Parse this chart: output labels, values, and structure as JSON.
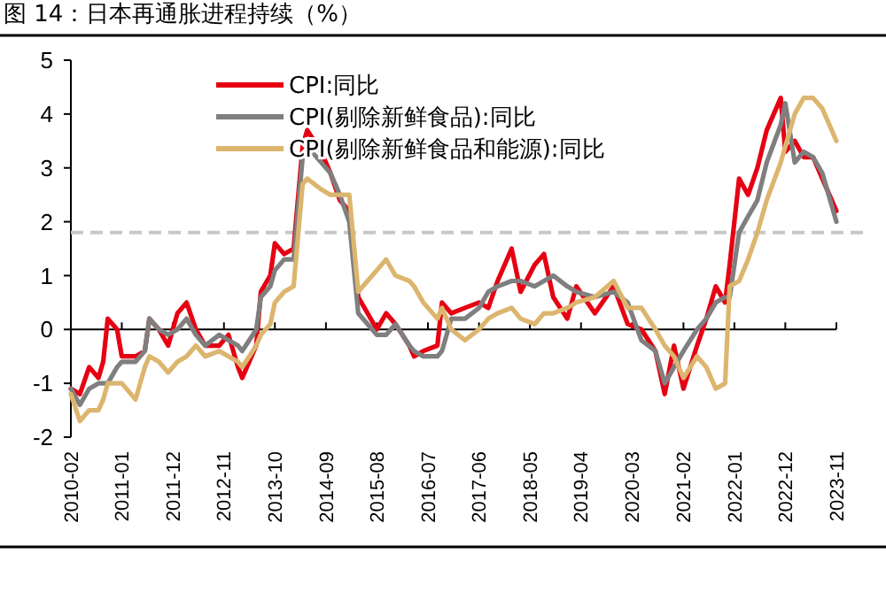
{
  "chart_data": {
    "type": "line",
    "title": "图 14：日本再通胀进程持续（%）",
    "x": [
      "2010-02",
      "2010-04",
      "2010-06",
      "2010-08",
      "2010-09",
      "2010-10",
      "2010-12",
      "2011-01",
      "2011-04",
      "2011-06",
      "2011-07",
      "2011-09",
      "2011-11",
      "2012-01",
      "2012-03",
      "2012-05",
      "2012-07",
      "2012-10",
      "2012-12",
      "2013-02",
      "2013-03",
      "2013-06",
      "2013-07",
      "2013-09",
      "2013-10",
      "2013-12",
      "2014-02",
      "2014-04",
      "2014-05",
      "2014-08",
      "2014-10",
      "2014-12",
      "2015-02",
      "2015-04",
      "2015-06",
      "2015-08",
      "2015-10",
      "2015-12",
      "2016-03",
      "2016-04",
      "2016-06",
      "2016-09",
      "2016-10",
      "2016-12",
      "2017-03",
      "2017-06",
      "2017-08",
      "2017-10",
      "2018-01",
      "2018-03",
      "2018-06",
      "2018-08",
      "2018-10",
      "2019-01",
      "2019-03",
      "2019-07",
      "2019-11",
      "2020-02",
      "2020-05",
      "2020-08",
      "2020-10",
      "2020-12",
      "2021-02",
      "2021-05",
      "2021-07",
      "2021-09",
      "2021-11",
      "2021-12",
      "2022-02",
      "2022-04",
      "2022-06",
      "2022-08",
      "2022-11",
      "2022-12",
      "2023-02",
      "2023-04",
      "2023-06",
      "2023-08",
      "2023-11"
    ],
    "series": [
      {
        "name": "CPI:同比",
        "color": "#e60012",
        "values": [
          -1.1,
          -1.2,
          -0.7,
          -0.9,
          -0.6,
          0.2,
          0.0,
          -0.5,
          -0.5,
          -0.4,
          0.2,
          0.0,
          -0.3,
          0.3,
          0.5,
          0.0,
          -0.3,
          -0.3,
          -0.1,
          -0.7,
          -0.9,
          -0.3,
          0.7,
          1.0,
          1.6,
          1.4,
          1.5,
          3.4,
          3.7,
          3.3,
          2.9,
          2.4,
          2.2,
          0.6,
          0.3,
          0.0,
          0.3,
          0.1,
          -0.3,
          -0.5,
          -0.4,
          -0.3,
          0.5,
          0.3,
          0.4,
          0.5,
          0.4,
          0.9,
          1.5,
          0.7,
          1.2,
          1.4,
          0.6,
          0.2,
          0.8,
          0.3,
          0.8,
          0.1,
          0.0,
          -0.4,
          -1.2,
          -0.3,
          -1.1,
          -0.3,
          0.2,
          0.8,
          0.5,
          1.2,
          2.8,
          2.5,
          3.0,
          3.7,
          4.3,
          3.3,
          3.5,
          3.2,
          3.2,
          2.8,
          2.2
        ]
      },
      {
        "name": "CPI(剔除新鲜食品):同比",
        "color": "#7f7f7f",
        "values": [
          -1.1,
          -1.4,
          -1.1,
          -1.0,
          -1.0,
          -1.0,
          -0.7,
          -0.6,
          -0.6,
          -0.4,
          0.2,
          0.0,
          -0.1,
          0.0,
          0.2,
          -0.1,
          -0.3,
          -0.1,
          -0.2,
          -0.3,
          -0.4,
          0.0,
          0.6,
          0.8,
          1.1,
          1.3,
          1.3,
          3.2,
          3.4,
          3.1,
          2.9,
          2.5,
          2.0,
          0.3,
          0.1,
          -0.1,
          -0.1,
          0.1,
          -0.3,
          -0.4,
          -0.5,
          -0.5,
          -0.4,
          0.2,
          0.2,
          0.4,
          0.7,
          0.8,
          0.9,
          0.9,
          0.8,
          0.9,
          1.0,
          0.8,
          0.7,
          0.6,
          0.7,
          0.5,
          -0.2,
          -0.4,
          -1.0,
          -0.7,
          -0.4,
          0.0,
          0.2,
          0.5,
          0.6,
          0.6,
          1.8,
          2.1,
          2.4,
          3.1,
          3.8,
          4.2,
          3.1,
          3.3,
          3.2,
          2.9,
          2.0
        ]
      },
      {
        "name": "CPI(剔除新鲜食品和能源):同比",
        "color": "#dcb56e",
        "values": [
          -1.2,
          -1.7,
          -1.5,
          -1.5,
          -1.3,
          -1.0,
          -1.0,
          -1.0,
          -1.3,
          -0.7,
          -0.5,
          -0.6,
          -0.8,
          -0.6,
          -0.5,
          -0.3,
          -0.5,
          -0.4,
          -0.5,
          -0.6,
          -0.7,
          -0.3,
          -0.1,
          0.1,
          0.5,
          0.7,
          0.8,
          2.7,
          2.8,
          2.6,
          2.5,
          2.5,
          2.5,
          0.7,
          0.9,
          1.1,
          1.3,
          1.0,
          0.9,
          0.8,
          0.5,
          0.2,
          0.4,
          0.0,
          -0.2,
          0.0,
          0.2,
          0.3,
          0.4,
          0.2,
          0.1,
          0.3,
          0.3,
          0.4,
          0.5,
          0.6,
          0.9,
          0.4,
          0.4,
          0.0,
          -0.3,
          -0.5,
          -0.9,
          -0.5,
          -0.7,
          -1.1,
          -1.0,
          0.8,
          0.9,
          1.3,
          1.8,
          2.4,
          3.1,
          3.4,
          4.0,
          4.3,
          4.3,
          4.1,
          3.5
        ]
      }
    ],
    "xlim": [
      "2010-02",
      "2023-11"
    ],
    "xticks": [
      "2010-02",
      "2011-01",
      "2011-12",
      "2012-11",
      "2013-10",
      "2014-09",
      "2015-08",
      "2016-07",
      "2017-06",
      "2018-05",
      "2019-04",
      "2020-03",
      "2021-02",
      "2022-01",
      "2022-12",
      "2023-11"
    ],
    "ylim": [
      -2,
      5
    ],
    "yticks": [
      -2,
      -1,
      0,
      1,
      2,
      3,
      4,
      5
    ],
    "ref_lines": [
      {
        "axis": "y",
        "value": 1.8,
        "color": "#c8c8c8",
        "line_style": "dashed"
      }
    ],
    "legend": "top",
    "marker": "none",
    "line_style": "solid"
  }
}
